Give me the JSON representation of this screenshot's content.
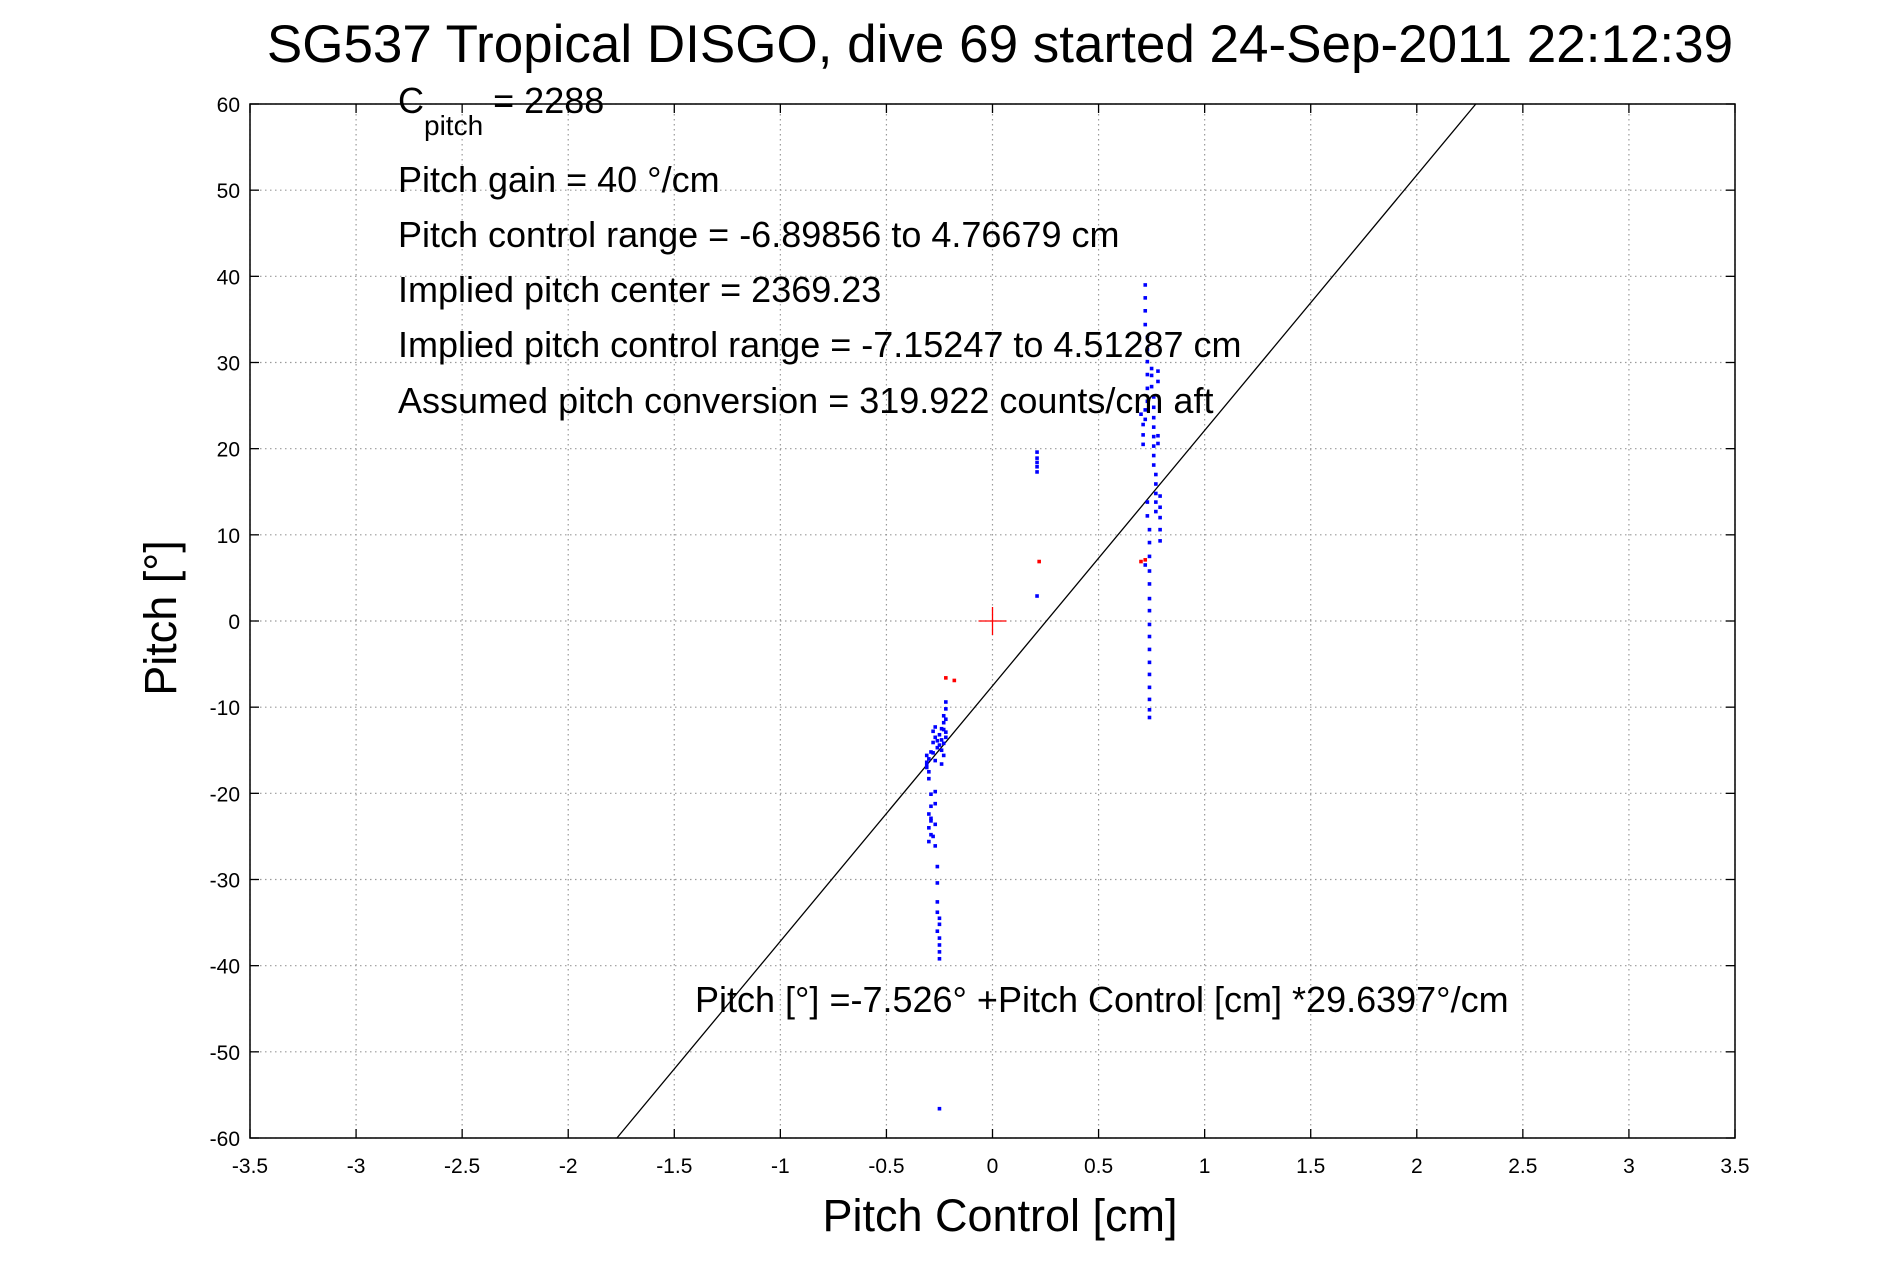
{
  "chart_data": {
    "type": "scatter",
    "title": "SG537 Tropical DISGO, dive 69 started 24-Sep-2011 22:12:39",
    "xlabel": "Pitch Control [cm]",
    "ylabel": "Pitch [°]",
    "xlim": [
      -3.5,
      3.5
    ],
    "ylim": [
      -60,
      60
    ],
    "xticks": [
      "-3.5",
      "-3",
      "-2.5",
      "-2",
      "-1.5",
      "-1",
      "-0.5",
      "0",
      "0.5",
      "1",
      "1.5",
      "2",
      "2.5",
      "3",
      "3.5"
    ],
    "yticks": [
      "60",
      "50",
      "40",
      "30",
      "20",
      "10",
      "0",
      "-10",
      "-20",
      "-30",
      "-40",
      "-50",
      "-60"
    ],
    "grid": true,
    "legend": "none",
    "annotations": {
      "c_pitch_main": "C",
      "c_pitch_sub": "pitch",
      "c_pitch_value": " = 2288",
      "pitch_gain": "Pitch gain = 40 °/cm",
      "pitch_control_range": "Pitch control range = -6.89856 to 4.76679 cm",
      "implied_center": "Implied pitch center = 2369.23",
      "implied_range": "Implied pitch control range = -7.15247 to 4.51287 cm",
      "assumed_conversion": "Assumed pitch conversion = 319.922 counts/cm aft",
      "fit_equation": "Pitch [°] =-7.526° +Pitch Control [cm] *29.6397°/cm"
    },
    "fit_line": {
      "intercept": -7.526,
      "slope": 29.6397,
      "color": "#000000"
    },
    "center_marker": {
      "x": 0,
      "y": 0,
      "color": "#ff0000"
    },
    "series": [
      {
        "color": "#0000ff",
        "points": [
          [
            -0.31,
            -15.6
          ],
          [
            -0.31,
            -16.4
          ],
          [
            -0.31,
            -17.0
          ],
          [
            -0.3,
            -16.0
          ],
          [
            -0.3,
            -17.5
          ],
          [
            -0.3,
            -18.3
          ],
          [
            -0.31,
            -16.8
          ],
          [
            -0.29,
            -15.2
          ],
          [
            -0.29,
            -20.1
          ],
          [
            -0.29,
            -21.5
          ],
          [
            -0.3,
            -22.4
          ],
          [
            -0.29,
            -23.2
          ],
          [
            -0.3,
            -24.0
          ],
          [
            -0.29,
            -24.8
          ],
          [
            -0.3,
            -25.6
          ],
          [
            -0.29,
            -22.9
          ],
          [
            -0.28,
            -12.8
          ],
          [
            -0.28,
            -14.1
          ],
          [
            -0.27,
            -13.5
          ],
          [
            -0.28,
            -15.3
          ],
          [
            -0.27,
            -16.2
          ],
          [
            -0.27,
            -12.3
          ],
          [
            -0.26,
            -14.7
          ],
          [
            -0.26,
            -13.9
          ],
          [
            -0.27,
            -19.8
          ],
          [
            -0.27,
            -21.2
          ],
          [
            -0.27,
            -23.6
          ],
          [
            -0.28,
            -25.0
          ],
          [
            -0.27,
            -26.1
          ],
          [
            -0.26,
            -28.5
          ],
          [
            -0.26,
            -30.4
          ],
          [
            -0.26,
            -32.6
          ],
          [
            -0.26,
            -33.8
          ],
          [
            -0.25,
            -34.5
          ],
          [
            -0.25,
            -35.2
          ],
          [
            -0.26,
            -36.0
          ],
          [
            -0.25,
            -36.8
          ],
          [
            -0.25,
            -37.6
          ],
          [
            -0.25,
            -38.4
          ],
          [
            -0.25,
            -39.2
          ],
          [
            -0.25,
            -13.2
          ],
          [
            -0.25,
            -14.4
          ],
          [
            -0.24,
            -12.5
          ],
          [
            -0.24,
            -15.0
          ],
          [
            -0.24,
            -13.8
          ],
          [
            -0.24,
            -16.6
          ],
          [
            -0.23,
            -11.8
          ],
          [
            -0.23,
            -14.2
          ],
          [
            -0.23,
            -11.0
          ],
          [
            -0.23,
            -12.6
          ],
          [
            -0.22,
            -10.2
          ],
          [
            -0.22,
            -11.4
          ],
          [
            -0.22,
            -12.9
          ],
          [
            -0.22,
            -13.5
          ],
          [
            -0.22,
            -9.4
          ],
          [
            -0.23,
            -15.6
          ],
          [
            -0.25,
            -56.6
          ],
          [
            0.21,
            17.3
          ],
          [
            0.21,
            17.9
          ],
          [
            0.21,
            18.4
          ],
          [
            0.21,
            18.9
          ],
          [
            0.21,
            19.6
          ],
          [
            0.21,
            2.9
          ],
          [
            0.7,
            24.0
          ],
          [
            0.71,
            22.8
          ],
          [
            0.71,
            21.6
          ],
          [
            0.71,
            20.5
          ],
          [
            0.72,
            23.4
          ],
          [
            0.72,
            24.5
          ],
          [
            0.72,
            6.5
          ],
          [
            0.72,
            39.0
          ],
          [
            0.72,
            37.5
          ],
          [
            0.72,
            36.0
          ],
          [
            0.72,
            34.4
          ],
          [
            0.73,
            32.9
          ],
          [
            0.73,
            31.5
          ],
          [
            0.73,
            30.1
          ],
          [
            0.73,
            28.6
          ],
          [
            0.73,
            27.0
          ],
          [
            0.73,
            25.5
          ],
          [
            0.73,
            13.8
          ],
          [
            0.73,
            12.2
          ],
          [
            0.74,
            10.6
          ],
          [
            0.74,
            9.1
          ],
          [
            0.74,
            7.5
          ],
          [
            0.74,
            5.8
          ],
          [
            0.74,
            4.3
          ],
          [
            0.74,
            2.6
          ],
          [
            0.74,
            1.2
          ],
          [
            0.74,
            -0.4
          ],
          [
            0.74,
            -1.8
          ],
          [
            0.74,
            -3.3
          ],
          [
            0.74,
            -4.8
          ],
          [
            0.74,
            -6.2
          ],
          [
            0.74,
            -7.7
          ],
          [
            0.74,
            -9.1
          ],
          [
            0.74,
            -10.3
          ],
          [
            0.74,
            -11.2
          ],
          [
            0.75,
            29.3
          ],
          [
            0.75,
            28.5
          ],
          [
            0.75,
            27.2
          ],
          [
            0.76,
            26.0
          ],
          [
            0.76,
            24.8
          ],
          [
            0.76,
            23.6
          ],
          [
            0.76,
            22.5
          ],
          [
            0.76,
            21.4
          ],
          [
            0.76,
            20.3
          ],
          [
            0.76,
            19.2
          ],
          [
            0.76,
            18.1
          ],
          [
            0.77,
            17.0
          ],
          [
            0.77,
            15.9
          ],
          [
            0.77,
            14.8
          ],
          [
            0.77,
            13.8
          ],
          [
            0.77,
            12.7
          ],
          [
            0.78,
            29.0
          ],
          [
            0.78,
            27.8
          ],
          [
            0.78,
            21.5
          ],
          [
            0.78,
            20.6
          ],
          [
            0.79,
            14.5
          ],
          [
            0.79,
            13.2
          ],
          [
            0.79,
            12.0
          ],
          [
            0.79,
            10.6
          ],
          [
            0.79,
            9.3
          ]
        ]
      },
      {
        "color": "#ff0000",
        "points": [
          [
            -0.22,
            -6.6
          ],
          [
            -0.18,
            -6.9
          ],
          [
            0.22,
            6.9
          ],
          [
            0.7,
            6.9
          ],
          [
            0.72,
            7.1
          ]
        ]
      }
    ]
  }
}
